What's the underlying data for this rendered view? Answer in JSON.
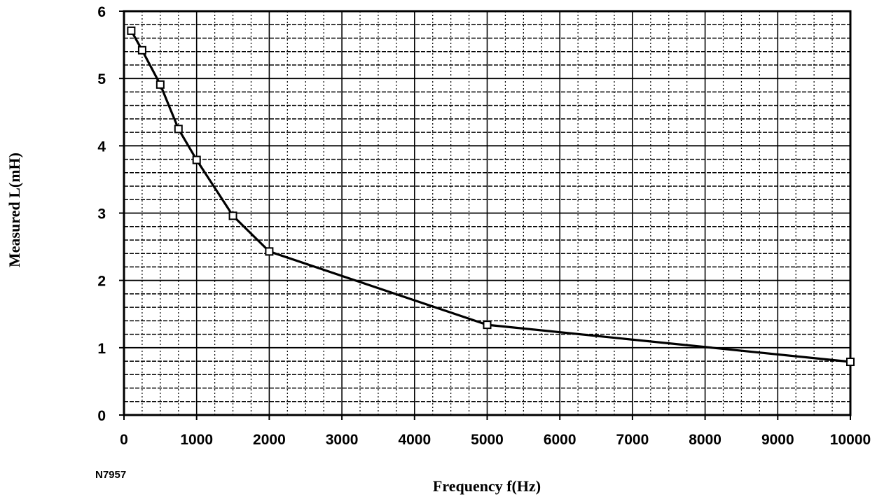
{
  "chart_data": {
    "type": "line",
    "title": "",
    "xlabel": "Frequency f(Hz)",
    "ylabel": "Measured L(mH)",
    "xlim": [
      0,
      10000
    ],
    "ylim": [
      0,
      6
    ],
    "xticks": [
      0,
      1000,
      2000,
      3000,
      4000,
      5000,
      6000,
      7000,
      8000,
      9000,
      10000
    ],
    "yticks": [
      0,
      1,
      2,
      3,
      4,
      5,
      6
    ],
    "grid": true,
    "marker": "square",
    "series": [
      {
        "x": [
          100,
          250,
          500,
          750,
          1000,
          1500,
          2000,
          5000,
          10000
        ],
        "y": [
          5.71,
          5.42,
          4.91,
          4.25,
          3.79,
          2.96,
          2.43,
          1.34,
          0.79
        ]
      }
    ]
  },
  "figure_id": "N7957"
}
